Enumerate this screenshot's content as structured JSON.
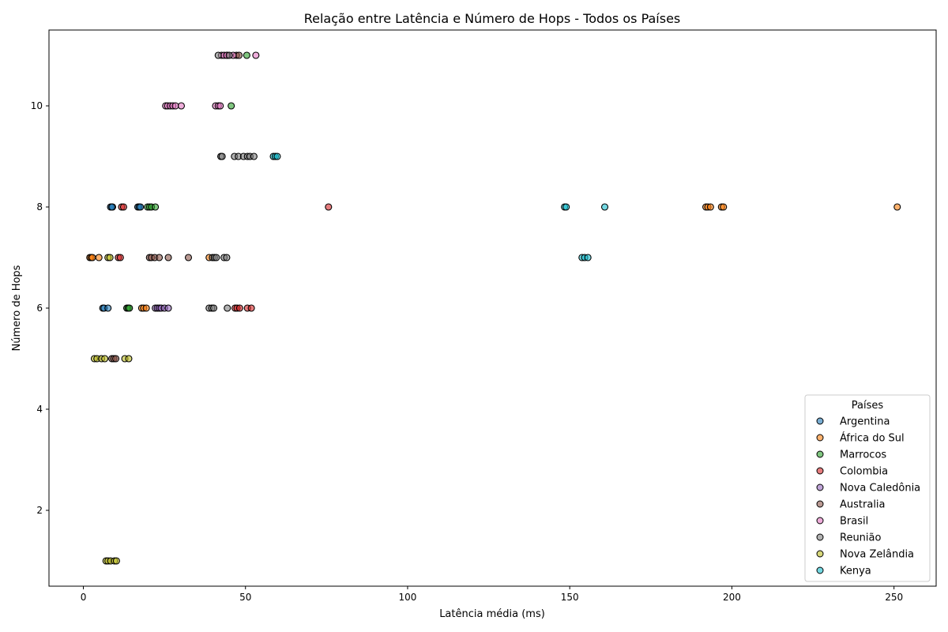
{
  "chart_data": {
    "type": "scatter",
    "title": "Relação entre Latência e Número de Hops - Todos os Países",
    "xlabel": "Latência média (ms)",
    "ylabel": "Número de Hops",
    "xlim": [
      -10.6,
      263
    ],
    "ylim": [
      0.5,
      11.5
    ],
    "x_ticks": [
      0,
      50,
      100,
      150,
      200,
      250
    ],
    "y_ticks": [
      2,
      4,
      6,
      8,
      10
    ],
    "grid": false,
    "legend": {
      "title": "Países",
      "placement": "lower-right"
    },
    "series": [
      {
        "name": "Argentina",
        "color": "#1f77b4",
        "points": [
          [
            8.4,
            8
          ],
          [
            9.0,
            8
          ],
          [
            8.8,
            8
          ],
          [
            16.8,
            8
          ],
          [
            17.2,
            8
          ],
          [
            17.6,
            8
          ],
          [
            6.0,
            6
          ],
          [
            6.4,
            6
          ],
          [
            7.6,
            6
          ]
        ]
      },
      {
        "name": "África do Sul",
        "color": "#ff7f0e",
        "points": [
          [
            2.0,
            7
          ],
          [
            2.4,
            7
          ],
          [
            2.8,
            7
          ],
          [
            4.8,
            7
          ],
          [
            38.8,
            7
          ],
          [
            18.0,
            6
          ],
          [
            18.6,
            6
          ],
          [
            19.4,
            6
          ],
          [
            192.0,
            8
          ],
          [
            192.6,
            8
          ],
          [
            193.4,
            8
          ],
          [
            196.8,
            8
          ],
          [
            197.4,
            8
          ],
          [
            251.0,
            8
          ]
        ]
      },
      {
        "name": "Marrocos",
        "color": "#2ca02c",
        "points": [
          [
            19.8,
            8
          ],
          [
            20.4,
            8
          ],
          [
            21.0,
            8
          ],
          [
            22.2,
            8
          ],
          [
            13.4,
            6
          ],
          [
            13.8,
            6
          ],
          [
            14.2,
            6
          ],
          [
            45.6,
            10
          ],
          [
            50.4,
            11
          ]
        ]
      },
      {
        "name": "Colombia",
        "color": "#d62728",
        "points": [
          [
            11.8,
            8
          ],
          [
            12.4,
            8
          ],
          [
            75.6,
            8
          ],
          [
            10.8,
            7
          ],
          [
            11.4,
            7
          ],
          [
            46.8,
            6
          ],
          [
            47.4,
            6
          ],
          [
            48.2,
            6
          ],
          [
            50.6,
            6
          ],
          [
            51.8,
            6
          ]
        ]
      },
      {
        "name": "Nova Caledônia",
        "color": "#9467bd",
        "points": [
          [
            22.2,
            6
          ],
          [
            22.8,
            6
          ],
          [
            23.4,
            6
          ],
          [
            24.0,
            6
          ],
          [
            25.0,
            6
          ],
          [
            26.2,
            6
          ]
        ]
      },
      {
        "name": "Australia",
        "color": "#8c564b",
        "points": [
          [
            20.4,
            7
          ],
          [
            21.0,
            7
          ],
          [
            22.0,
            7
          ],
          [
            23.4,
            7
          ],
          [
            26.2,
            7
          ],
          [
            32.4,
            7
          ],
          [
            8.8,
            5
          ],
          [
            9.4,
            5
          ],
          [
            10.0,
            5
          ],
          [
            44.4,
            11
          ],
          [
            47.2,
            11
          ],
          [
            48.0,
            11
          ]
        ]
      },
      {
        "name": "Brasil",
        "color": "#e377c2",
        "points": [
          [
            25.4,
            10
          ],
          [
            26.0,
            10
          ],
          [
            26.8,
            10
          ],
          [
            27.6,
            10
          ],
          [
            28.4,
            10
          ],
          [
            30.2,
            10
          ],
          [
            40.8,
            10
          ],
          [
            41.6,
            10
          ],
          [
            42.2,
            10
          ],
          [
            42.6,
            11
          ],
          [
            43.4,
            11
          ],
          [
            44.2,
            11
          ],
          [
            46.2,
            11
          ],
          [
            53.2,
            11
          ]
        ]
      },
      {
        "name": "Reunião",
        "color": "#7f7f7f",
        "points": [
          [
            42.4,
            9
          ],
          [
            42.8,
            9
          ],
          [
            46.6,
            9
          ],
          [
            47.8,
            9
          ],
          [
            49.4,
            9
          ],
          [
            50.6,
            9
          ],
          [
            51.4,
            9
          ],
          [
            52.6,
            9
          ],
          [
            39.8,
            7
          ],
          [
            40.4,
            7
          ],
          [
            41.0,
            7
          ],
          [
            43.4,
            7
          ],
          [
            44.2,
            7
          ],
          [
            38.8,
            6
          ],
          [
            39.6,
            6
          ],
          [
            40.2,
            6
          ],
          [
            44.4,
            6
          ],
          [
            41.6,
            11
          ],
          [
            45.0,
            11
          ]
        ]
      },
      {
        "name": "Nova Zelândia",
        "color": "#bcbd22",
        "points": [
          [
            7.6,
            7
          ],
          [
            8.2,
            7
          ],
          [
            3.4,
            5
          ],
          [
            4.2,
            5
          ],
          [
            5.6,
            5
          ],
          [
            6.6,
            5
          ],
          [
            12.8,
            5
          ],
          [
            14.0,
            5
          ],
          [
            7.0,
            1
          ],
          [
            7.6,
            1
          ],
          [
            8.4,
            1
          ],
          [
            9.6,
            1
          ],
          [
            10.2,
            1
          ]
        ]
      },
      {
        "name": "Kenya",
        "color": "#17becf",
        "points": [
          [
            58.6,
            9
          ],
          [
            59.2,
            9
          ],
          [
            59.8,
            9
          ],
          [
            148.4,
            8
          ],
          [
            148.9,
            8
          ],
          [
            160.8,
            8
          ],
          [
            153.8,
            7
          ],
          [
            154.6,
            7
          ],
          [
            155.6,
            7
          ]
        ]
      }
    ]
  }
}
